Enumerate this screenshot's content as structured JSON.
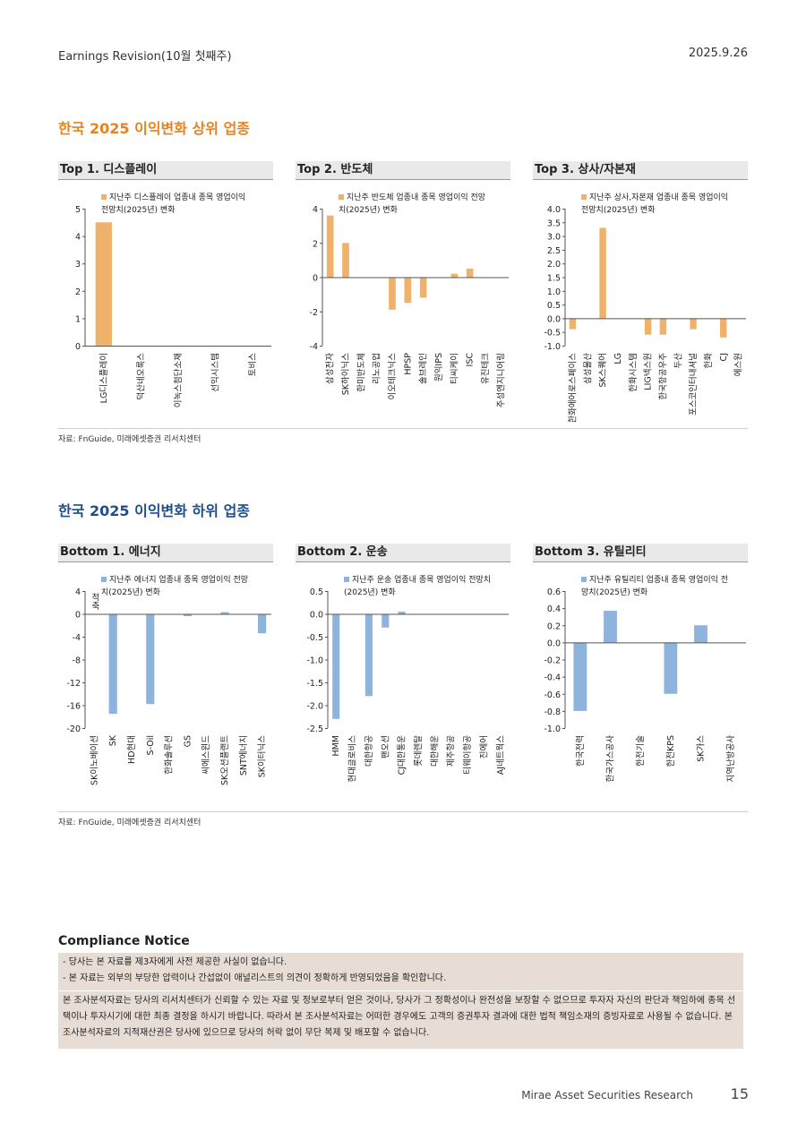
{
  "header": {
    "left": "Earnings Revision(10월 첫째주)",
    "right": "2025.9.26"
  },
  "sections": [
    {
      "title": "한국 2025 이익변화 상위 업종",
      "source": "자료: FnGuide, 미래에셋증권 리서치센터"
    },
    {
      "title": "한국 2025 이익변화 하위 업종",
      "source": "자료: FnGuide, 미래에셋증권 리서치센터"
    }
  ],
  "chart_data": [
    {
      "type": "bar",
      "title": "Top 1. 디스플레이",
      "y_label": "(%)",
      "categories": [
        "LG디스플레이",
        "덕산네오룩스",
        "이녹스첨단소재",
        "선익시스템",
        "토비스"
      ],
      "series": [
        {
          "name": "지난주 디스플레이 업종내 종목 영업이익 전망치(2025년) 변화",
          "color": "#f0b26b",
          "values": [
            4.5,
            0,
            0,
            0,
            0
          ]
        }
      ],
      "ylim": [
        0,
        5
      ],
      "yticks": [
        0,
        1,
        2,
        3,
        4,
        5
      ]
    },
    {
      "type": "bar",
      "title": "Top 2. 반도체",
      "y_label": "(%)",
      "categories": [
        "삼성전자",
        "SK하이닉스",
        "한미반도체",
        "리노공업",
        "이오테크닉스",
        "HPSP",
        "솔브레인",
        "원익IPS",
        "티씨케이",
        "ISC",
        "유진테크",
        "주성엔지니어링"
      ],
      "series": [
        {
          "name": "지난주 반도체 업종내 종목 영업이익 전망치(2025년) 변화",
          "color": "#f0b26b",
          "values": [
            3.6,
            2.0,
            0,
            0,
            -1.9,
            -1.5,
            -1.2,
            0,
            0.2,
            0.5,
            0,
            0
          ]
        }
      ],
      "ylim": [
        -4,
        4
      ],
      "yticks": [
        -4,
        -2,
        0,
        2,
        4
      ]
    },
    {
      "type": "bar",
      "title": "Top 3. 상사/자본재",
      "y_label": "(%)",
      "categories": [
        "한화에어로스페이스",
        "삼성물산",
        "SK스퀘어",
        "LG",
        "한화시스템",
        "LIG넥스원",
        "한국항공우주",
        "두산",
        "포스코인터내셔널",
        "한화",
        "CJ",
        "에스원"
      ],
      "series": [
        {
          "name": "지난주 상사,자본재 업종내 종목 영업이익 전망치(2025년) 변화",
          "color": "#f0b26b",
          "values": [
            -0.4,
            0,
            3.3,
            0,
            0,
            -0.6,
            -0.6,
            0,
            -0.4,
            0,
            -0.7,
            0
          ]
        }
      ],
      "ylim": [
        -1,
        4
      ],
      "yticks": [
        {
          "value": -1,
          "label": "-1.0"
        },
        -0.5,
        {
          "value": 0,
          "label": "0.0"
        },
        0.5,
        {
          "value": 1,
          "label": "1.0"
        },
        1.5,
        {
          "value": 2,
          "label": "2.0"
        },
        2.5,
        {
          "value": 3,
          "label": "3.0"
        },
        3.5,
        {
          "value": 4,
          "label": "4.0"
        }
      ]
    },
    {
      "type": "bar",
      "title": "Bottom 1. 에너지",
      "y_label": "(%)",
      "annotation": "적축",
      "categories": [
        "SK이노베이션",
        "SK",
        "HD현대",
        "S-Oil",
        "한화솔루션",
        "GS",
        "씨에스윈드",
        "SK오션플랜트",
        "SNT에너지",
        "SK이터닉스"
      ],
      "series": [
        {
          "name": "지난주 에너지 업종내 종목 영업이익 전망치(2025년) 변화",
          "color": "#8fb4dc",
          "values": [
            null,
            -17.5,
            0,
            -15.8,
            0,
            -0.4,
            0,
            0.3,
            0,
            -3.4
          ]
        }
      ],
      "ylim": [
        -20,
        4
      ],
      "yticks": [
        -20,
        -16,
        -12,
        -8,
        -4,
        0,
        4
      ]
    },
    {
      "type": "bar",
      "title": "Bottom 2. 운송",
      "y_label": "(%)",
      "categories": [
        "HMM",
        "현대글로비스",
        "대한항공",
        "팬오션",
        "CJ대한통운",
        "롯데렌탈",
        "대한해운",
        "제주항공",
        "티웨이항공",
        "진에어",
        "AJ네트웍스"
      ],
      "series": [
        {
          "name": "지난주 운송 업종내 종목 영업이익 전망치(2025년) 변화",
          "color": "#8fb4dc",
          "values": [
            -2.3,
            0,
            -1.8,
            -0.3,
            0.05,
            0,
            0,
            0,
            0,
            0,
            0
          ]
        }
      ],
      "ylim": [
        -2.5,
        0.5
      ],
      "yticks": [
        -2.5,
        {
          "value": -2,
          "label": "-2.0"
        },
        -1.5,
        {
          "value": -1,
          "label": "-1.0"
        },
        -0.5,
        {
          "value": 0,
          "label": "0.0"
        },
        0.5
      ]
    },
    {
      "type": "bar",
      "title": "Bottom 3. 유틸리티",
      "y_label": "(%)",
      "categories": [
        "한국전력",
        "한국가스공사",
        "한전기술",
        "한전KPS",
        "SK가스",
        "지역난방공사"
      ],
      "series": [
        {
          "name": "지난주 유틸리티 업종내 종목 영업이익 전망치(2025년) 변화",
          "color": "#8fb4dc",
          "values": [
            -0.8,
            0.37,
            0,
            -0.6,
            0.2,
            0
          ]
        }
      ],
      "ylim": [
        -1,
        0.6
      ],
      "yticks": [
        {
          "value": -1,
          "label": "-1.0"
        },
        -0.8,
        -0.6,
        -0.4,
        -0.2,
        {
          "value": 0,
          "label": "0.0"
        },
        0.2,
        0.4,
        0.6
      ]
    }
  ],
  "compliance": {
    "title": "Compliance Notice",
    "notes": [
      "- 당사는 본 자료를 제3자에게 사전 제공한 사실이 없습니다.",
      "- 본 자료는 외부의 부당한 압력이나 간섭없이 애널리스트의 의견이 정확하게 반영되었음을 확인합니다."
    ],
    "body": "본 조사분석자료는 당사의 리서치센터가 신뢰할 수 있는 자료 및 정보로부터 얻은 것이나, 당사가 그 정확성이나 완전성을 보장할 수 없으므로 투자자 자신의 판단과 책임하에 종목 선택이나 투자시기에 대한 최종 결정을 하시기 바랍니다. 따라서 본 조사분석자료는 어떠한 경우에도 고객의 증권투자 결과에 대한 법적 책임소재의 증빙자료로 사용될 수 없습니다. 본 조사분석자료의 지적재산권은 당사에 있으므로 당사의 허락 없이 무단 복제 및 배포할 수 없습니다."
  },
  "footer": {
    "text": "Mirae Asset Securities Research",
    "page": "15"
  }
}
